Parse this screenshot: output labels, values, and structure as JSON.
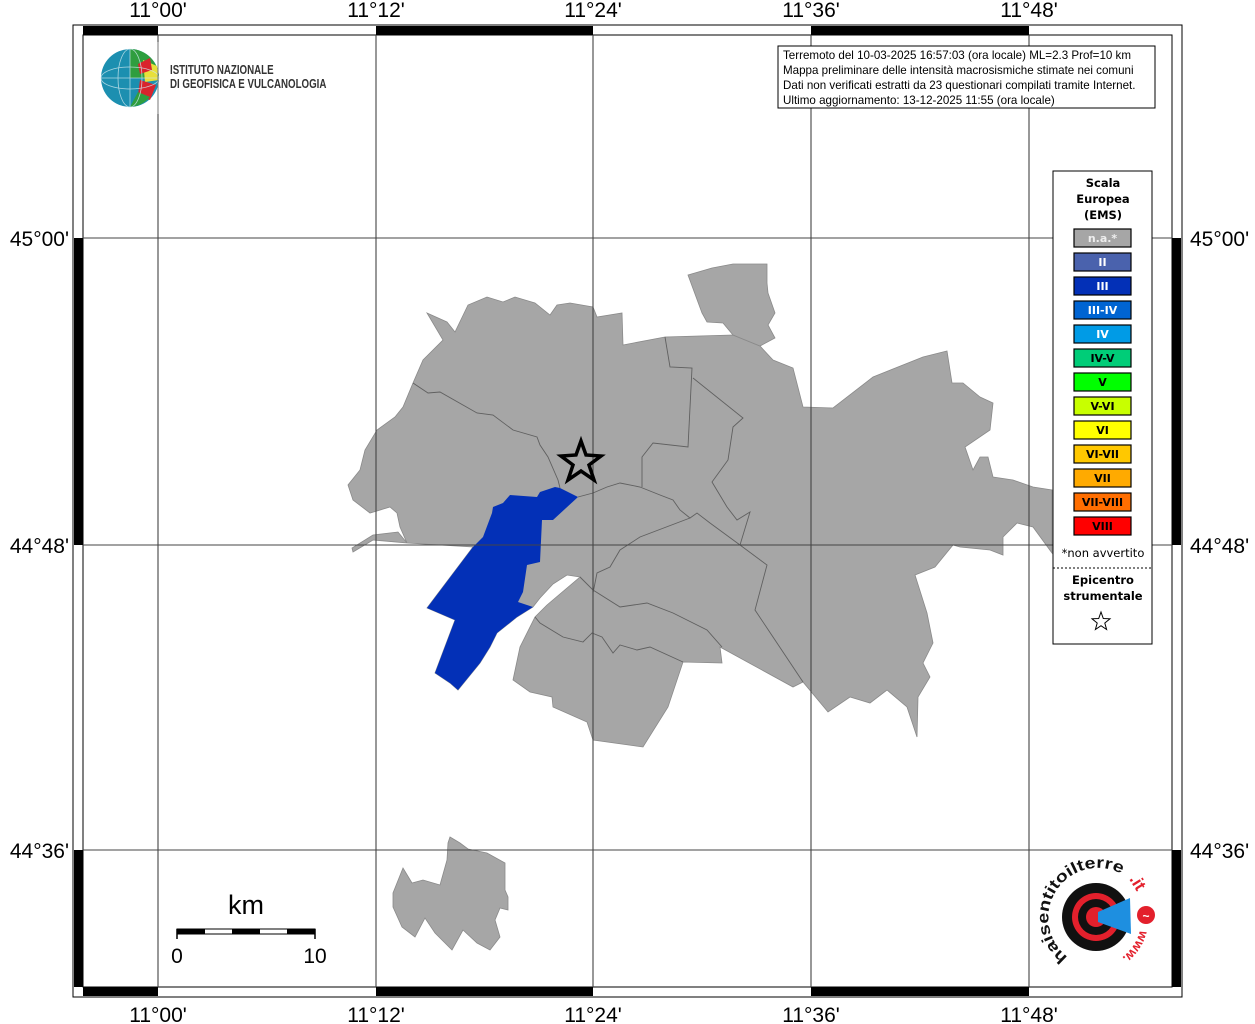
{
  "axes": {
    "lon_labels": [
      "11°00'",
      "11°12'",
      "11°24'",
      "11°36'",
      "11°48'"
    ],
    "lat_labels": [
      "45°00'",
      "44°48'",
      "44°36'"
    ]
  },
  "info_box": {
    "lines": [
      "Terremoto del 10-03-2025 16:57:03 (ora locale) ML=2.3 Prof=10 km",
      "Mappa preliminare delle intensità macrosismiche stimate nei comuni",
      "Dati non verificati estratti da 23 questionari compilati tramite Internet.",
      "Ultimo aggiornamento: 13-12-2025 11:55 (ora locale)"
    ]
  },
  "ingv_logo": {
    "line1": "ISTITUTO NAZIONALE",
    "line2": "DI GEOFISICA E VULCANOLOGIA"
  },
  "legend": {
    "title": [
      "Scala",
      "Europea",
      "(EMS)"
    ],
    "items": [
      {
        "label": "n.a.*",
        "color": "#a6a6a6",
        "text_color": "#eeeeee"
      },
      {
        "label": "II",
        "color": "#4a62ad",
        "text_color": "#ffffff"
      },
      {
        "label": "III",
        "color": "#0330b7",
        "text_color": "#ffffff"
      },
      {
        "label": "III-IV",
        "color": "#0064d2",
        "text_color": "#ffffff"
      },
      {
        "label": "IV",
        "color": "#009be6",
        "text_color": "#ffffff"
      },
      {
        "label": "IV-V",
        "color": "#00cd78",
        "text_color": "#000000"
      },
      {
        "label": "V",
        "color": "#00ff00",
        "text_color": "#000000"
      },
      {
        "label": "V-VI",
        "color": "#c8ff00",
        "text_color": "#000000"
      },
      {
        "label": "VI",
        "color": "#ffff00",
        "text_color": "#000000"
      },
      {
        "label": "VI-VII",
        "color": "#ffc800",
        "text_color": "#000000"
      },
      {
        "label": "VII",
        "color": "#ffaa00",
        "text_color": "#000000"
      },
      {
        "label": "VII-VIII",
        "color": "#ff6e00",
        "text_color": "#000000"
      },
      {
        "label": "VIII",
        "color": "#ff0000",
        "text_color": "#000000"
      }
    ],
    "note": "*non avvertito",
    "epicenter_label": [
      "Epicentro",
      "strumentale"
    ],
    "epicenter_icon": "star-outline-icon"
  },
  "map": {
    "areas": [
      {
        "intensity": "III"
      }
    ]
  },
  "scale_bar": {
    "unit": "km",
    "min_label": "0",
    "max_label": "10"
  },
  "hsit_logo": {
    "text_main": "haisentitoilterremoto",
    "text_tld": ".it",
    "text_www": "www."
  }
}
